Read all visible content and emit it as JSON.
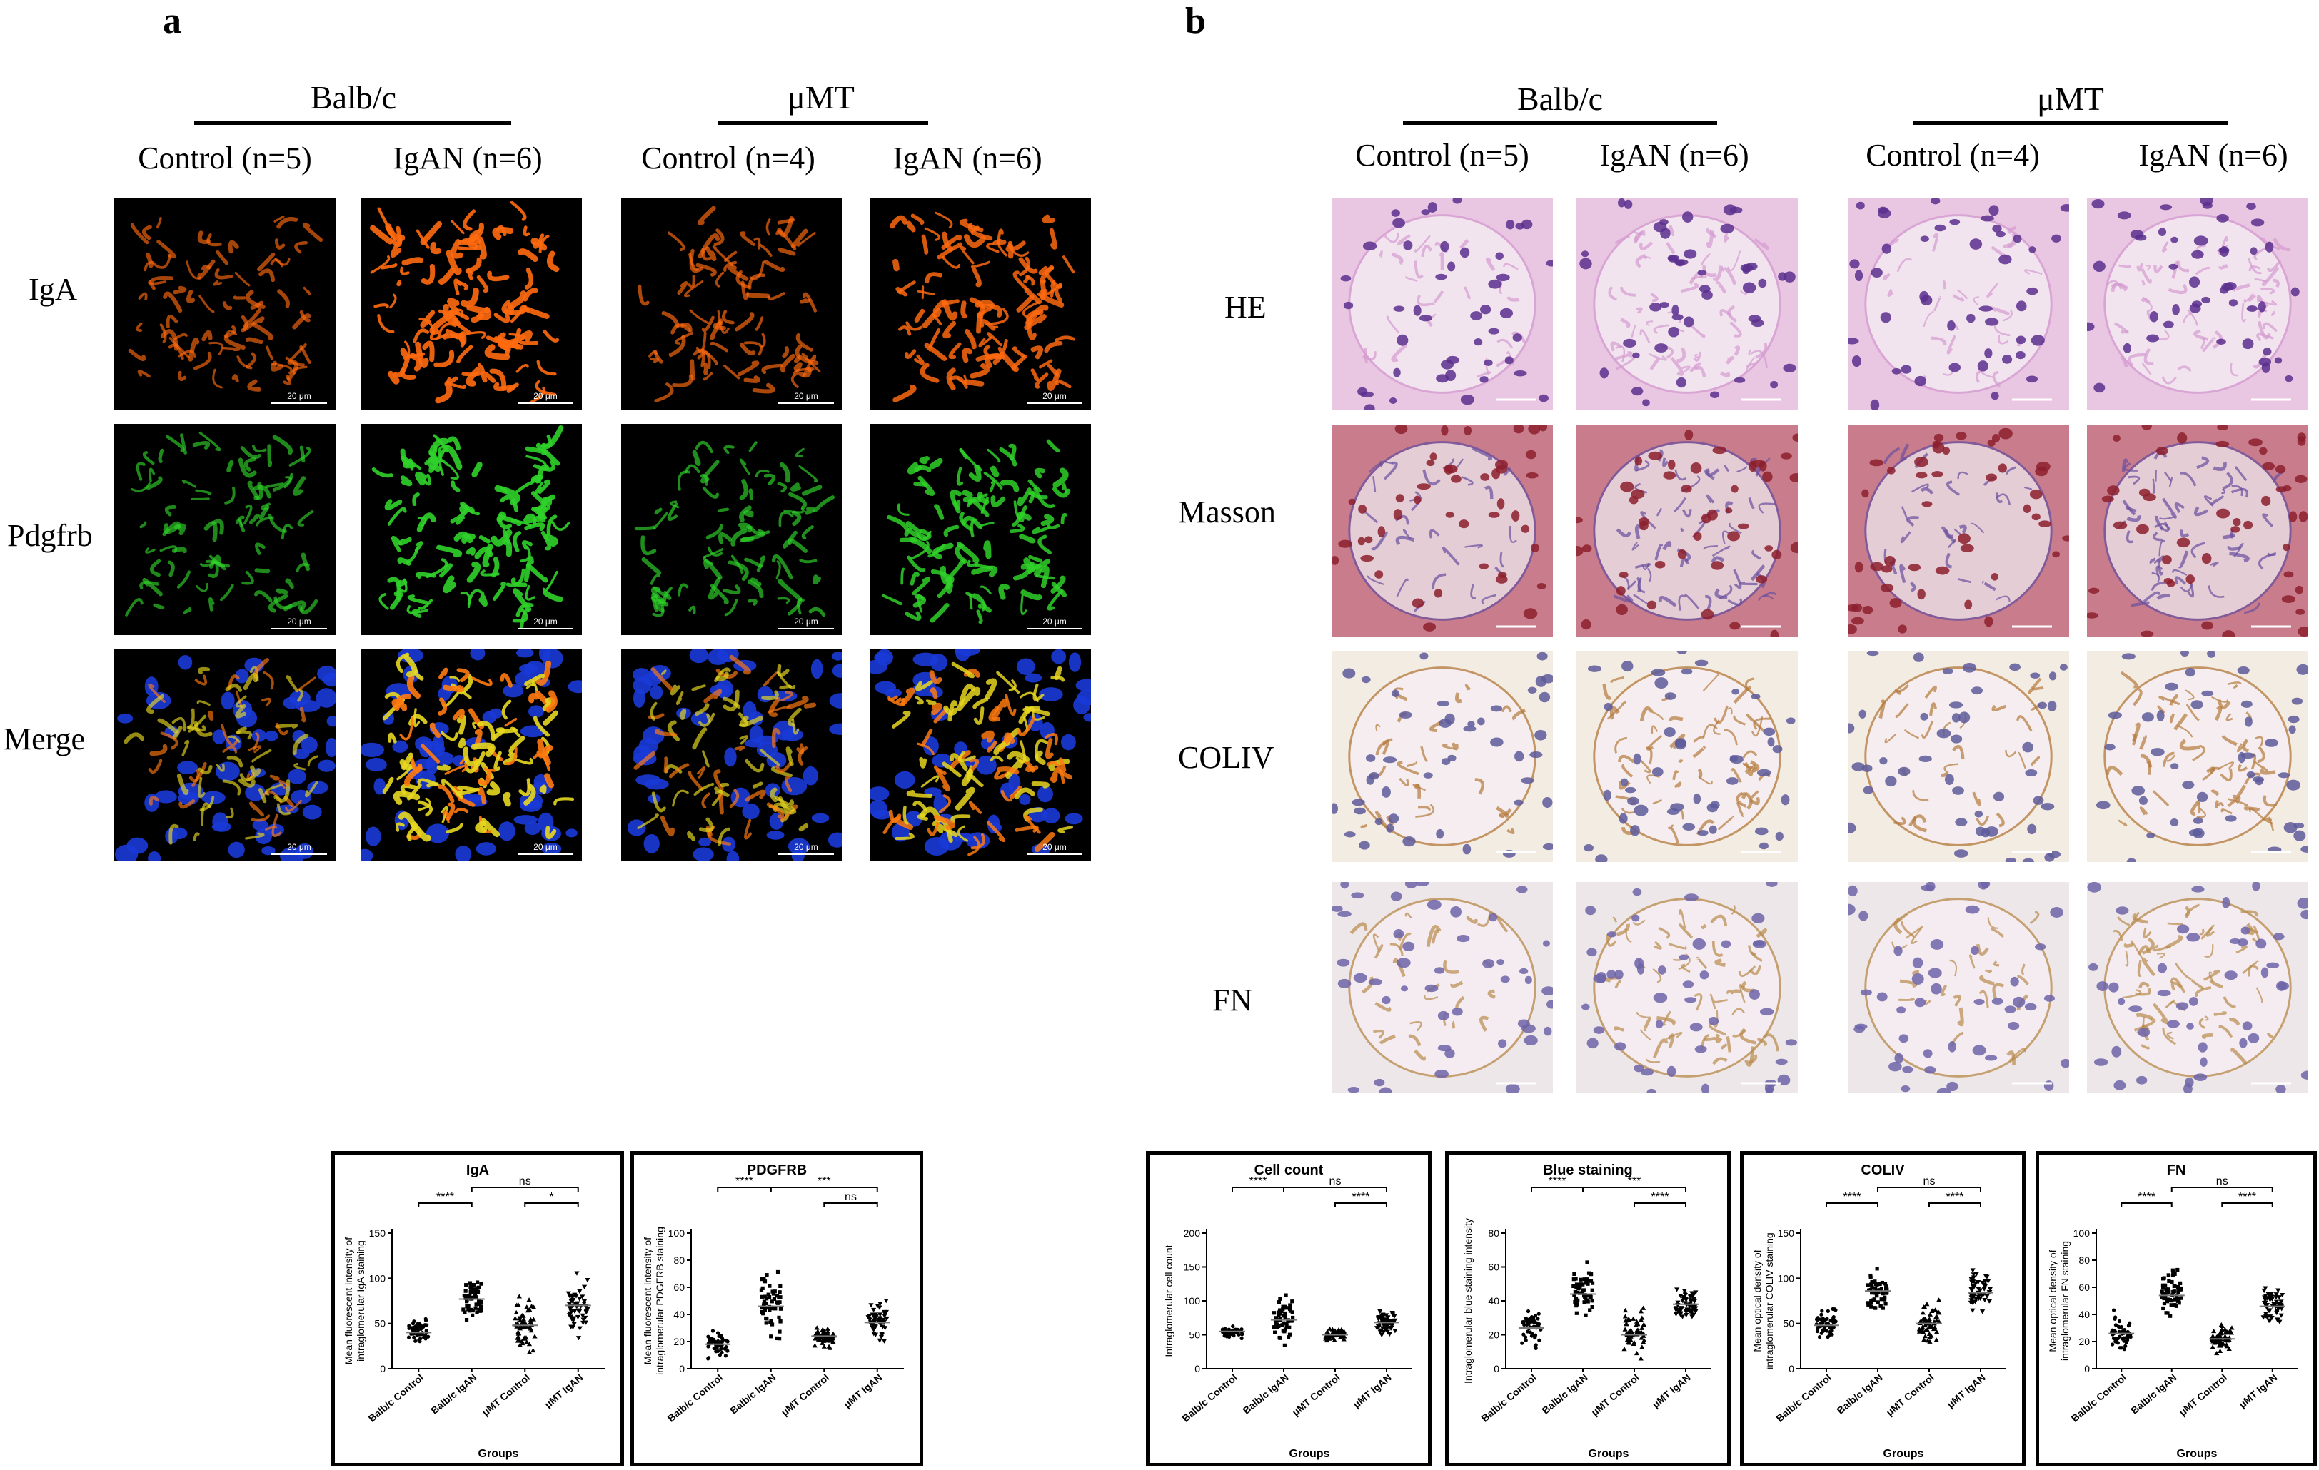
{
  "panel_a": {
    "letter": "a",
    "groups": [
      {
        "strain": "Balb/c",
        "controls": [
          "Control (n=5)",
          "IgAN (n=6)"
        ]
      },
      {
        "strain": "μMT",
        "controls": [
          "Control (n=4)",
          "IgAN (n=6)"
        ]
      }
    ],
    "rows": [
      "IgA",
      "Pdgfrb",
      "Merge"
    ],
    "scale_label": "20 μm"
  },
  "panel_b": {
    "letter": "b",
    "groups": [
      {
        "strain": "Balb/c",
        "controls": [
          "Control (n=5)",
          "IgAN (n=6)"
        ]
      },
      {
        "strain": "μMT",
        "controls": [
          "Control (n=4)",
          "IgAN (n=6)"
        ]
      }
    ],
    "rows": [
      "HE",
      "Masson",
      "COLIV",
      "FN"
    ]
  },
  "chart_data": [
    {
      "type": "scatter",
      "title": "IgA",
      "ylabel": "Mean fluorescent intensity of intraglomerular IgA staining",
      "xlabel": "Groups",
      "categories": [
        "Balb/c Control",
        "Balb/c IgAN",
        "μMT Control",
        "μMT IgAN"
      ],
      "ylim": [
        0,
        150
      ],
      "yticks": [
        0,
        50,
        100,
        150
      ],
      "means": [
        40,
        77,
        48,
        70
      ],
      "spread": [
        8,
        14,
        15,
        18
      ],
      "marker": [
        "circle",
        "square",
        "triangle",
        "triangle-down"
      ],
      "comparisons": [
        {
          "from": 0,
          "to": 1,
          "label": "****",
          "level": 0
        },
        {
          "from": 2,
          "to": 3,
          "label": "*",
          "level": 0
        },
        {
          "from": 1,
          "to": 3,
          "label": "ns",
          "level": 1
        }
      ]
    },
    {
      "type": "scatter",
      "title": "PDGFRB",
      "ylabel": "Mean fluorescent intensity of intraglomerular PDGFRB staining",
      "xlabel": "",
      "categories": [
        "Balb/c Control",
        "Balb/c IgAN",
        "μMT Control",
        "μMT IgAN"
      ],
      "ylim": [
        0,
        100
      ],
      "yticks": [
        0,
        20,
        40,
        60,
        80,
        100
      ],
      "means": [
        18,
        46,
        24,
        34
      ],
      "spread": [
        5,
        15,
        4,
        8
      ],
      "marker": [
        "circle",
        "square",
        "triangle",
        "triangle-down"
      ],
      "comparisons": [
        {
          "from": 0,
          "to": 1,
          "label": "****",
          "level": 1
        },
        {
          "from": 1,
          "to": 3,
          "label": "***",
          "level": 1
        },
        {
          "from": 2,
          "to": 3,
          "label": "ns",
          "level": 0
        }
      ]
    },
    {
      "type": "scatter",
      "title": "Cell count",
      "ylabel": "Intraglomerular cell count",
      "xlabel": "Groups",
      "categories": [
        "Balb/c Control",
        "Balb/c IgAN",
        "μMT Control",
        "μMT IgAN"
      ],
      "ylim": [
        0,
        200
      ],
      "yticks": [
        0,
        50,
        100,
        150,
        200
      ],
      "means": [
        55,
        72,
        50,
        68
      ],
      "spread": [
        5,
        20,
        6,
        10
      ],
      "marker": [
        "circle",
        "square",
        "triangle",
        "triangle-down"
      ],
      "comparisons": [
        {
          "from": 0,
          "to": 1,
          "label": "****",
          "level": 1
        },
        {
          "from": 1,
          "to": 3,
          "label": "ns",
          "level": 1
        },
        {
          "from": 2,
          "to": 3,
          "label": "****",
          "level": 0
        }
      ]
    },
    {
      "type": "scatter",
      "title": "Blue staining",
      "ylabel": "Intraglomerular blue staining intensity",
      "xlabel": "Groups",
      "categories": [
        "Balb/c Control",
        "Balb/c IgAN",
        "μMT Control",
        "μMT IgAN"
      ],
      "ylim": [
        0,
        80
      ],
      "yticks": [
        0,
        20,
        40,
        60,
        80
      ],
      "means": [
        24,
        44,
        20,
        38
      ],
      "spread": [
        7,
        8,
        7,
        5
      ],
      "marker": [
        "circle",
        "square",
        "triangle",
        "triangle-down"
      ],
      "comparisons": [
        {
          "from": 0,
          "to": 1,
          "label": "****",
          "level": 1
        },
        {
          "from": 1,
          "to": 3,
          "label": "***",
          "level": 1
        },
        {
          "from": 2,
          "to": 3,
          "label": "****",
          "level": 0
        }
      ]
    },
    {
      "type": "scatter",
      "title": "COLIV",
      "ylabel": "Mean optical density of intraglomerular COLIV staining",
      "xlabel": "Groups",
      "categories": [
        "Balb/c Control",
        "Balb/c IgAN",
        "μMT Control",
        "μMT IgAN"
      ],
      "ylim": [
        0,
        150
      ],
      "yticks": [
        0,
        50,
        100,
        150
      ],
      "means": [
        48,
        86,
        50,
        84
      ],
      "spread": [
        10,
        14,
        12,
        14
      ],
      "marker": [
        "circle",
        "square",
        "triangle",
        "triangle-down"
      ],
      "comparisons": [
        {
          "from": 0,
          "to": 1,
          "label": "****",
          "level": 0
        },
        {
          "from": 2,
          "to": 3,
          "label": "****",
          "level": 0
        },
        {
          "from": 1,
          "to": 3,
          "label": "ns",
          "level": 1
        }
      ]
    },
    {
      "type": "scatter",
      "title": "FN",
      "ylabel": "Mean optical density of intraglomerular FN staining",
      "xlabel": "Groups",
      "categories": [
        "Balb/c Control",
        "Balb/c IgAN",
        "μMT Control",
        "μMT IgAN"
      ],
      "ylim": [
        0,
        100
      ],
      "yticks": [
        0,
        20,
        40,
        60,
        80,
        100
      ],
      "means": [
        26,
        54,
        22,
        46
      ],
      "spread": [
        7,
        10,
        6,
        8
      ],
      "marker": [
        "circle",
        "square",
        "triangle",
        "triangle-down"
      ],
      "comparisons": [
        {
          "from": 0,
          "to": 1,
          "label": "****",
          "level": 0
        },
        {
          "from": 2,
          "to": 3,
          "label": "****",
          "level": 0
        },
        {
          "from": 1,
          "to": 3,
          "label": "ns",
          "level": 1
        }
      ]
    }
  ]
}
